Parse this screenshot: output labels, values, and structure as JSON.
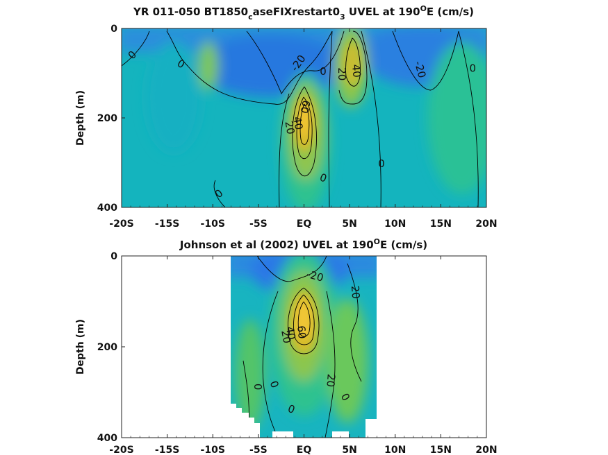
{
  "chart_data": [
    {
      "type": "heatmap",
      "title_parts": [
        "YR 011-050 BT1850",
        "c",
        "aseFIXrestart0",
        "3",
        " UVEL at 190",
        "O",
        "E (cm/s)"
      ],
      "ylabel": "Depth (m)",
      "x_tick_labels": [
        "-20S",
        "-15S",
        "-10S",
        "-5S",
        "EQ",
        "5N",
        "10N",
        "15N",
        "20N"
      ],
      "x_range": [
        -20,
        20
      ],
      "y_tick_labels": [
        "0",
        "200",
        "400"
      ],
      "ylim": [
        0,
        400
      ],
      "colormap": "parula",
      "contour_labels": [
        {
          "text": "0",
          "lat": -18.8,
          "depth": 60,
          "rot": -45
        },
        {
          "text": "0",
          "lat": -13.5,
          "depth": 80,
          "rot": 30
        },
        {
          "text": "-20",
          "lat": -0.6,
          "depth": 78,
          "rot": -55
        },
        {
          "text": "-20",
          "lat": 12.7,
          "depth": 92,
          "rot": 75
        },
        {
          "text": "0",
          "lat": 18.5,
          "depth": 90,
          "rot": 0
        },
        {
          "text": "20",
          "lat": 4.1,
          "depth": 102,
          "rot": 90
        },
        {
          "text": "40",
          "lat": 5.7,
          "depth": 95,
          "rot": 85
        },
        {
          "text": "0",
          "lat": 2.1,
          "depth": 97,
          "rot": 0
        },
        {
          "text": "60",
          "lat": 0.1,
          "depth": 175,
          "rot": 100
        },
        {
          "text": "20",
          "lat": -1.6,
          "depth": 222,
          "rot": 80
        },
        {
          "text": "40",
          "lat": -0.7,
          "depth": 212,
          "rot": 80
        },
        {
          "text": "0",
          "lat": 8.5,
          "depth": 303,
          "rot": 0
        },
        {
          "text": "0",
          "lat": 2.1,
          "depth": 335,
          "rot": 20
        },
        {
          "text": "0",
          "lat": -9.3,
          "depth": 370,
          "rot": -40
        }
      ]
    },
    {
      "type": "heatmap",
      "title_parts": [
        "Johnson et al (2002) UVEL at 190",
        "O",
        "E (cm/s)"
      ],
      "ylabel": "Depth (m)",
      "x_tick_labels": [
        "-20S",
        "-15S",
        "-10S",
        "-5S",
        "EQ",
        "5N",
        "10N",
        "15N",
        "20N"
      ],
      "x_range": [
        -20,
        20
      ],
      "y_tick_labels": [
        "0",
        "200",
        "400"
      ],
      "ylim": [
        0,
        400
      ],
      "colormap": "parula",
      "data_lat_range": [
        -8,
        8
      ],
      "contour_labels": [
        {
          "text": "-20",
          "lat": 1.2,
          "depth": 45,
          "rot": 15
        },
        {
          "text": "20",
          "lat": 5.6,
          "depth": 80,
          "rot": 85
        },
        {
          "text": "40",
          "lat": -1.5,
          "depth": 170,
          "rot": 80
        },
        {
          "text": "20",
          "lat": -2.0,
          "depth": 178,
          "rot": 80
        },
        {
          "text": "60",
          "lat": -0.3,
          "depth": 168,
          "rot": 85
        },
        {
          "text": "0",
          "lat": -5.1,
          "depth": 288,
          "rot": 90
        },
        {
          "text": "0",
          "lat": -3.3,
          "depth": 283,
          "rot": 70
        },
        {
          "text": "20",
          "lat": 2.9,
          "depth": 274,
          "rot": 95
        },
        {
          "text": "0",
          "lat": 4.5,
          "depth": 311,
          "rot": 60
        },
        {
          "text": "0",
          "lat": -1.4,
          "depth": 338,
          "rot": 20
        }
      ]
    }
  ],
  "colors": {
    "parula_stops": [
      "#3040c0",
      "#2a70e0",
      "#1b9ad6",
      "#0fb3c2",
      "#2fc39a",
      "#8cc64e",
      "#d4bb2a",
      "#f4c835"
    ]
  }
}
